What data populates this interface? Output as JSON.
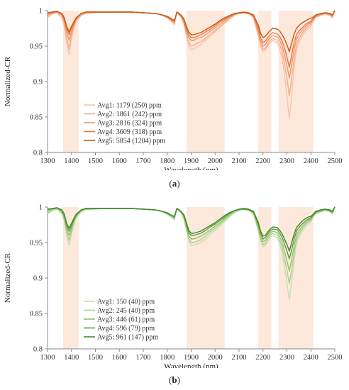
{
  "chart_data": [
    {
      "type": "line",
      "panel_label": "a",
      "xlabel": "Wavelength (nm)",
      "ylabel": "Normalized-CR",
      "xlim": [
        1300,
        2500
      ],
      "ylim": [
        0.8,
        1.0
      ],
      "x_ticks": [
        "1300",
        "1400",
        "1500",
        "1600",
        "1700",
        "1800",
        "1900",
        "2000",
        "2100",
        "2200",
        "2300",
        "2400",
        "2500"
      ],
      "y_ticks": [
        "1",
        "0.95",
        "0.9",
        "0.85",
        "0.8"
      ],
      "grid": false,
      "legend_position": "lower-left",
      "highlight_bands_nm": [
        [
          1365,
          1430
        ],
        [
          1880,
          2040
        ],
        [
          2180,
          2235
        ],
        [
          2265,
          2410
        ]
      ],
      "highlight_color": "#fde4d6",
      "x": [
        1300,
        1320,
        1340,
        1360,
        1370,
        1380,
        1390,
        1400,
        1410,
        1420,
        1440,
        1460,
        1500,
        1550,
        1600,
        1650,
        1700,
        1750,
        1780,
        1800,
        1820,
        1830,
        1840,
        1850,
        1860,
        1870,
        1880,
        1890,
        1900,
        1910,
        1920,
        1940,
        1960,
        1980,
        2000,
        2020,
        2040,
        2060,
        2080,
        2100,
        2120,
        2140,
        2160,
        2180,
        2190,
        2200,
        2210,
        2220,
        2230,
        2240,
        2260,
        2270,
        2280,
        2290,
        2300,
        2310,
        2320,
        2330,
        2340,
        2350,
        2360,
        2370,
        2380,
        2390,
        2400,
        2410,
        2420,
        2440,
        2460,
        2480,
        2490,
        2500
      ],
      "series": [
        {
          "name": "Avg1: 1179 (250) ppm",
          "color": "#f7c4ab",
          "values": [
            0.99,
            0.995,
            0.997,
            0.99,
            0.978,
            0.955,
            0.938,
            0.96,
            0.975,
            0.985,
            0.993,
            0.996,
            0.997,
            0.998,
            0.998,
            0.998,
            0.997,
            0.996,
            0.993,
            0.99,
            0.984,
            0.98,
            0.998,
            0.994,
            0.99,
            0.98,
            0.965,
            0.95,
            0.945,
            0.946,
            0.948,
            0.952,
            0.958,
            0.964,
            0.97,
            0.976,
            0.982,
            0.988,
            0.993,
            0.996,
            0.997,
            0.996,
            0.99,
            0.965,
            0.95,
            0.942,
            0.944,
            0.95,
            0.955,
            0.958,
            0.954,
            0.945,
            0.932,
            0.91,
            0.88,
            0.848,
            0.88,
            0.92,
            0.945,
            0.955,
            0.962,
            0.968,
            0.972,
            0.975,
            0.978,
            0.985,
            0.99,
            0.993,
            0.995,
            0.993,
            0.99,
            1.0
          ]
        },
        {
          "name": "Avg2: 1861 (242) ppm",
          "color": "#f4ad89",
          "values": [
            0.992,
            0.996,
            0.998,
            0.992,
            0.982,
            0.962,
            0.946,
            0.965,
            0.978,
            0.987,
            0.994,
            0.997,
            0.998,
            0.998,
            0.998,
            0.998,
            0.997,
            0.996,
            0.993,
            0.99,
            0.985,
            0.982,
            0.998,
            0.994,
            0.99,
            0.982,
            0.968,
            0.955,
            0.95,
            0.951,
            0.953,
            0.956,
            0.961,
            0.967,
            0.972,
            0.978,
            0.984,
            0.989,
            0.994,
            0.996,
            0.997,
            0.996,
            0.991,
            0.968,
            0.953,
            0.945,
            0.947,
            0.953,
            0.958,
            0.961,
            0.958,
            0.952,
            0.942,
            0.925,
            0.905,
            0.88,
            0.905,
            0.932,
            0.952,
            0.96,
            0.966,
            0.971,
            0.975,
            0.978,
            0.981,
            0.987,
            0.991,
            0.994,
            0.996,
            0.994,
            0.991,
            1.0
          ]
        },
        {
          "name": "Avg3: 2816 (324) ppm",
          "color": "#f09566",
          "values": [
            0.994,
            0.997,
            0.998,
            0.994,
            0.986,
            0.97,
            0.958,
            0.97,
            0.98,
            0.988,
            0.995,
            0.997,
            0.998,
            0.998,
            0.998,
            0.998,
            0.997,
            0.996,
            0.994,
            0.991,
            0.986,
            0.984,
            0.998,
            0.995,
            0.991,
            0.984,
            0.972,
            0.962,
            0.958,
            0.958,
            0.96,
            0.962,
            0.966,
            0.971,
            0.976,
            0.981,
            0.986,
            0.991,
            0.995,
            0.997,
            0.997,
            0.996,
            0.992,
            0.972,
            0.958,
            0.95,
            0.952,
            0.958,
            0.962,
            0.965,
            0.963,
            0.958,
            0.95,
            0.938,
            0.922,
            0.905,
            0.925,
            0.945,
            0.96,
            0.966,
            0.971,
            0.975,
            0.978,
            0.981,
            0.983,
            0.988,
            0.992,
            0.995,
            0.996,
            0.995,
            0.992,
            1.0
          ]
        },
        {
          "name": "Avg4: 3609 (318) ppm",
          "color": "#e8773e",
          "values": [
            0.996,
            0.998,
            0.999,
            0.995,
            0.988,
            0.975,
            0.966,
            0.975,
            0.982,
            0.989,
            0.996,
            0.998,
            0.998,
            0.998,
            0.998,
            0.998,
            0.997,
            0.996,
            0.994,
            0.991,
            0.987,
            0.985,
            0.998,
            0.995,
            0.992,
            0.986,
            0.975,
            0.966,
            0.962,
            0.962,
            0.963,
            0.966,
            0.97,
            0.974,
            0.979,
            0.984,
            0.988,
            0.992,
            0.995,
            0.997,
            0.997,
            0.996,
            0.993,
            0.976,
            0.962,
            0.955,
            0.957,
            0.962,
            0.966,
            0.969,
            0.967,
            0.963,
            0.957,
            0.947,
            0.935,
            0.92,
            0.938,
            0.955,
            0.966,
            0.971,
            0.975,
            0.978,
            0.981,
            0.983,
            0.985,
            0.989,
            0.993,
            0.995,
            0.997,
            0.995,
            0.993,
            1.0
          ]
        },
        {
          "name": "Avg5: 5854 (1204) ppm",
          "color": "#c55a11",
          "values": [
            0.997,
            0.998,
            0.999,
            0.996,
            0.99,
            0.978,
            0.97,
            0.978,
            0.984,
            0.99,
            0.996,
            0.998,
            0.998,
            0.998,
            0.998,
            0.998,
            0.997,
            0.996,
            0.994,
            0.992,
            0.988,
            0.986,
            0.998,
            0.996,
            0.993,
            0.988,
            0.978,
            0.97,
            0.966,
            0.966,
            0.967,
            0.969,
            0.973,
            0.977,
            0.981,
            0.986,
            0.99,
            0.993,
            0.996,
            0.997,
            0.998,
            0.997,
            0.994,
            0.98,
            0.968,
            0.962,
            0.964,
            0.968,
            0.972,
            0.975,
            0.974,
            0.971,
            0.966,
            0.96,
            0.952,
            0.942,
            0.955,
            0.967,
            0.975,
            0.979,
            0.982,
            0.984,
            0.986,
            0.988,
            0.989,
            0.991,
            0.994,
            0.996,
            0.997,
            0.996,
            0.994,
            1.0
          ]
        }
      ]
    },
    {
      "type": "line",
      "panel_label": "b",
      "xlabel": "Wavelength (nm)",
      "ylabel": "Normalized-CR",
      "xlim": [
        1300,
        2500
      ],
      "ylim": [
        0.8,
        1.0
      ],
      "x_ticks": [
        "1300",
        "1400",
        "1500",
        "1600",
        "1700",
        "1800",
        "1900",
        "2000",
        "2100",
        "2200",
        "2300",
        "2400",
        "2500"
      ],
      "y_ticks": [
        "1",
        "0.95",
        "0.9",
        "0.85",
        "0.8"
      ],
      "grid": false,
      "legend_position": "lower-left",
      "highlight_bands_nm": [
        [
          1365,
          1430
        ],
        [
          1880,
          2040
        ],
        [
          2180,
          2235
        ],
        [
          2265,
          2410
        ]
      ],
      "highlight_color": "#fde4d6",
      "x": [
        1300,
        1320,
        1340,
        1360,
        1370,
        1380,
        1390,
        1400,
        1410,
        1420,
        1440,
        1460,
        1500,
        1550,
        1600,
        1650,
        1700,
        1750,
        1780,
        1800,
        1820,
        1830,
        1840,
        1850,
        1860,
        1870,
        1880,
        1890,
        1900,
        1910,
        1920,
        1940,
        1960,
        1980,
        2000,
        2020,
        2040,
        2060,
        2080,
        2100,
        2120,
        2140,
        2160,
        2180,
        2190,
        2200,
        2210,
        2220,
        2230,
        2240,
        2260,
        2270,
        2280,
        2290,
        2300,
        2310,
        2320,
        2330,
        2340,
        2350,
        2360,
        2370,
        2380,
        2390,
        2400,
        2410,
        2420,
        2440,
        2460,
        2480,
        2490,
        2500
      ],
      "series": [
        {
          "name": "Avg1: 150 (40) ppm",
          "color": "#c5e0b4",
          "values": [
            0.99,
            0.995,
            0.997,
            0.99,
            0.98,
            0.96,
            0.946,
            0.962,
            0.975,
            0.985,
            0.993,
            0.996,
            0.997,
            0.998,
            0.998,
            0.998,
            0.997,
            0.996,
            0.993,
            0.99,
            0.985,
            0.982,
            0.998,
            0.994,
            0.99,
            0.982,
            0.968,
            0.952,
            0.946,
            0.946,
            0.947,
            0.95,
            0.955,
            0.961,
            0.967,
            0.973,
            0.98,
            0.986,
            0.992,
            0.995,
            0.997,
            0.996,
            0.99,
            0.967,
            0.952,
            0.944,
            0.946,
            0.952,
            0.957,
            0.96,
            0.956,
            0.948,
            0.935,
            0.915,
            0.893,
            0.87,
            0.895,
            0.925,
            0.948,
            0.958,
            0.964,
            0.969,
            0.973,
            0.976,
            0.979,
            0.986,
            0.99,
            0.993,
            0.995,
            0.993,
            0.99,
            1.0
          ]
        },
        {
          "name": "Avg2: 245 (40) ppm",
          "color": "#a9d18e",
          "values": [
            0.992,
            0.996,
            0.998,
            0.992,
            0.983,
            0.965,
            0.953,
            0.966,
            0.978,
            0.987,
            0.994,
            0.997,
            0.998,
            0.998,
            0.998,
            0.998,
            0.997,
            0.996,
            0.993,
            0.99,
            0.986,
            0.983,
            0.998,
            0.995,
            0.991,
            0.984,
            0.97,
            0.956,
            0.95,
            0.95,
            0.951,
            0.954,
            0.959,
            0.965,
            0.97,
            0.976,
            0.982,
            0.988,
            0.993,
            0.996,
            0.997,
            0.996,
            0.991,
            0.97,
            0.955,
            0.947,
            0.949,
            0.955,
            0.96,
            0.963,
            0.96,
            0.953,
            0.943,
            0.928,
            0.91,
            0.892,
            0.912,
            0.935,
            0.954,
            0.962,
            0.967,
            0.972,
            0.976,
            0.979,
            0.981,
            0.987,
            0.991,
            0.994,
            0.996,
            0.994,
            0.991,
            1.0
          ]
        },
        {
          "name": "Avg3: 446 (61) ppm",
          "color": "#8fc46d",
          "values": [
            0.994,
            0.997,
            0.998,
            0.994,
            0.986,
            0.97,
            0.96,
            0.97,
            0.98,
            0.988,
            0.995,
            0.997,
            0.998,
            0.998,
            0.998,
            0.998,
            0.997,
            0.996,
            0.994,
            0.991,
            0.987,
            0.985,
            0.998,
            0.995,
            0.992,
            0.986,
            0.973,
            0.96,
            0.955,
            0.955,
            0.956,
            0.959,
            0.963,
            0.968,
            0.973,
            0.978,
            0.984,
            0.99,
            0.994,
            0.996,
            0.997,
            0.996,
            0.992,
            0.973,
            0.959,
            0.951,
            0.953,
            0.958,
            0.963,
            0.966,
            0.964,
            0.958,
            0.95,
            0.938,
            0.924,
            0.91,
            0.927,
            0.945,
            0.96,
            0.966,
            0.971,
            0.975,
            0.978,
            0.981,
            0.983,
            0.988,
            0.992,
            0.995,
            0.996,
            0.995,
            0.992,
            1.0
          ]
        },
        {
          "name": "Avg4: 596 (79) ppm",
          "color": "#5f9e3a",
          "values": [
            0.996,
            0.998,
            0.999,
            0.995,
            0.988,
            0.974,
            0.966,
            0.974,
            0.982,
            0.989,
            0.996,
            0.998,
            0.998,
            0.998,
            0.998,
            0.998,
            0.997,
            0.996,
            0.994,
            0.991,
            0.988,
            0.986,
            0.998,
            0.996,
            0.993,
            0.988,
            0.976,
            0.964,
            0.96,
            0.96,
            0.961,
            0.963,
            0.967,
            0.972,
            0.976,
            0.981,
            0.986,
            0.991,
            0.995,
            0.997,
            0.997,
            0.996,
            0.993,
            0.976,
            0.963,
            0.955,
            0.957,
            0.962,
            0.966,
            0.969,
            0.968,
            0.963,
            0.957,
            0.948,
            0.938,
            0.927,
            0.94,
            0.955,
            0.966,
            0.971,
            0.975,
            0.978,
            0.981,
            0.983,
            0.985,
            0.989,
            0.993,
            0.995,
            0.997,
            0.995,
            0.993,
            1.0
          ]
        },
        {
          "name": "Avg5: 961 (147) ppm",
          "color": "#3c8a2e",
          "values": [
            0.997,
            0.998,
            0.999,
            0.996,
            0.99,
            0.977,
            0.97,
            0.977,
            0.984,
            0.99,
            0.996,
            0.998,
            0.998,
            0.998,
            0.998,
            0.998,
            0.997,
            0.996,
            0.994,
            0.992,
            0.988,
            0.987,
            0.998,
            0.996,
            0.993,
            0.989,
            0.978,
            0.967,
            0.963,
            0.963,
            0.964,
            0.966,
            0.97,
            0.974,
            0.978,
            0.983,
            0.988,
            0.992,
            0.995,
            0.997,
            0.998,
            0.997,
            0.994,
            0.979,
            0.966,
            0.959,
            0.96,
            0.965,
            0.969,
            0.972,
            0.971,
            0.967,
            0.962,
            0.955,
            0.947,
            0.938,
            0.95,
            0.962,
            0.971,
            0.975,
            0.979,
            0.982,
            0.984,
            0.986,
            0.987,
            0.99,
            0.994,
            0.996,
            0.997,
            0.996,
            0.994,
            1.0
          ]
        }
      ]
    }
  ]
}
